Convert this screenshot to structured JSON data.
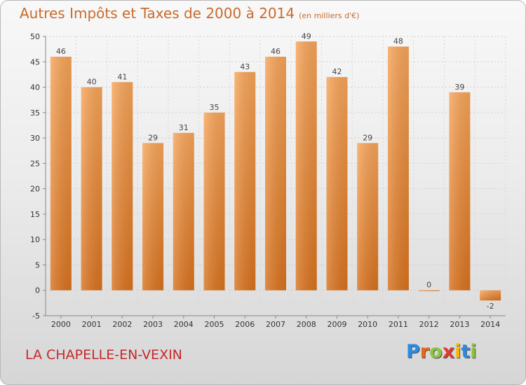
{
  "header": {
    "title": "Autres Impôts et Taxes de 2000 à 2014",
    "unit": "(en milliers d'€)"
  },
  "footer": {
    "place": "LA CHAPELLE-EN-VEXIN",
    "logo_letters": [
      "P",
      "r",
      "o",
      "x",
      "i",
      "t",
      "i"
    ],
    "logo_colors": [
      "#2b8be0",
      "#e8661c",
      "#8bc43f",
      "#e03a2f",
      "#f5b800",
      "#2b8be0",
      "#8bc43f"
    ]
  },
  "chart_data": {
    "type": "bar",
    "title": "Autres Impôts et Taxes de 2000 à 2014",
    "subtitle": "(en milliers d'€)",
    "categories": [
      "2000",
      "2001",
      "2002",
      "2003",
      "2004",
      "2005",
      "2006",
      "2007",
      "2008",
      "2009",
      "2010",
      "2011",
      "2012",
      "2013",
      "2014"
    ],
    "values": [
      46,
      40,
      41,
      29,
      31,
      35,
      43,
      46,
      49,
      42,
      29,
      48,
      0,
      39,
      -2
    ],
    "value_labels": [
      "46",
      "40",
      "41",
      "29",
      "31",
      "35",
      "43",
      "46",
      "49",
      "42",
      "29",
      "48",
      "0",
      "39",
      "-2"
    ],
    "ylim": [
      -5,
      50
    ],
    "yticks": [
      -5,
      0,
      5,
      10,
      15,
      20,
      25,
      30,
      35,
      40,
      45,
      50
    ],
    "grid": true,
    "bar_color": "#f0963f"
  }
}
